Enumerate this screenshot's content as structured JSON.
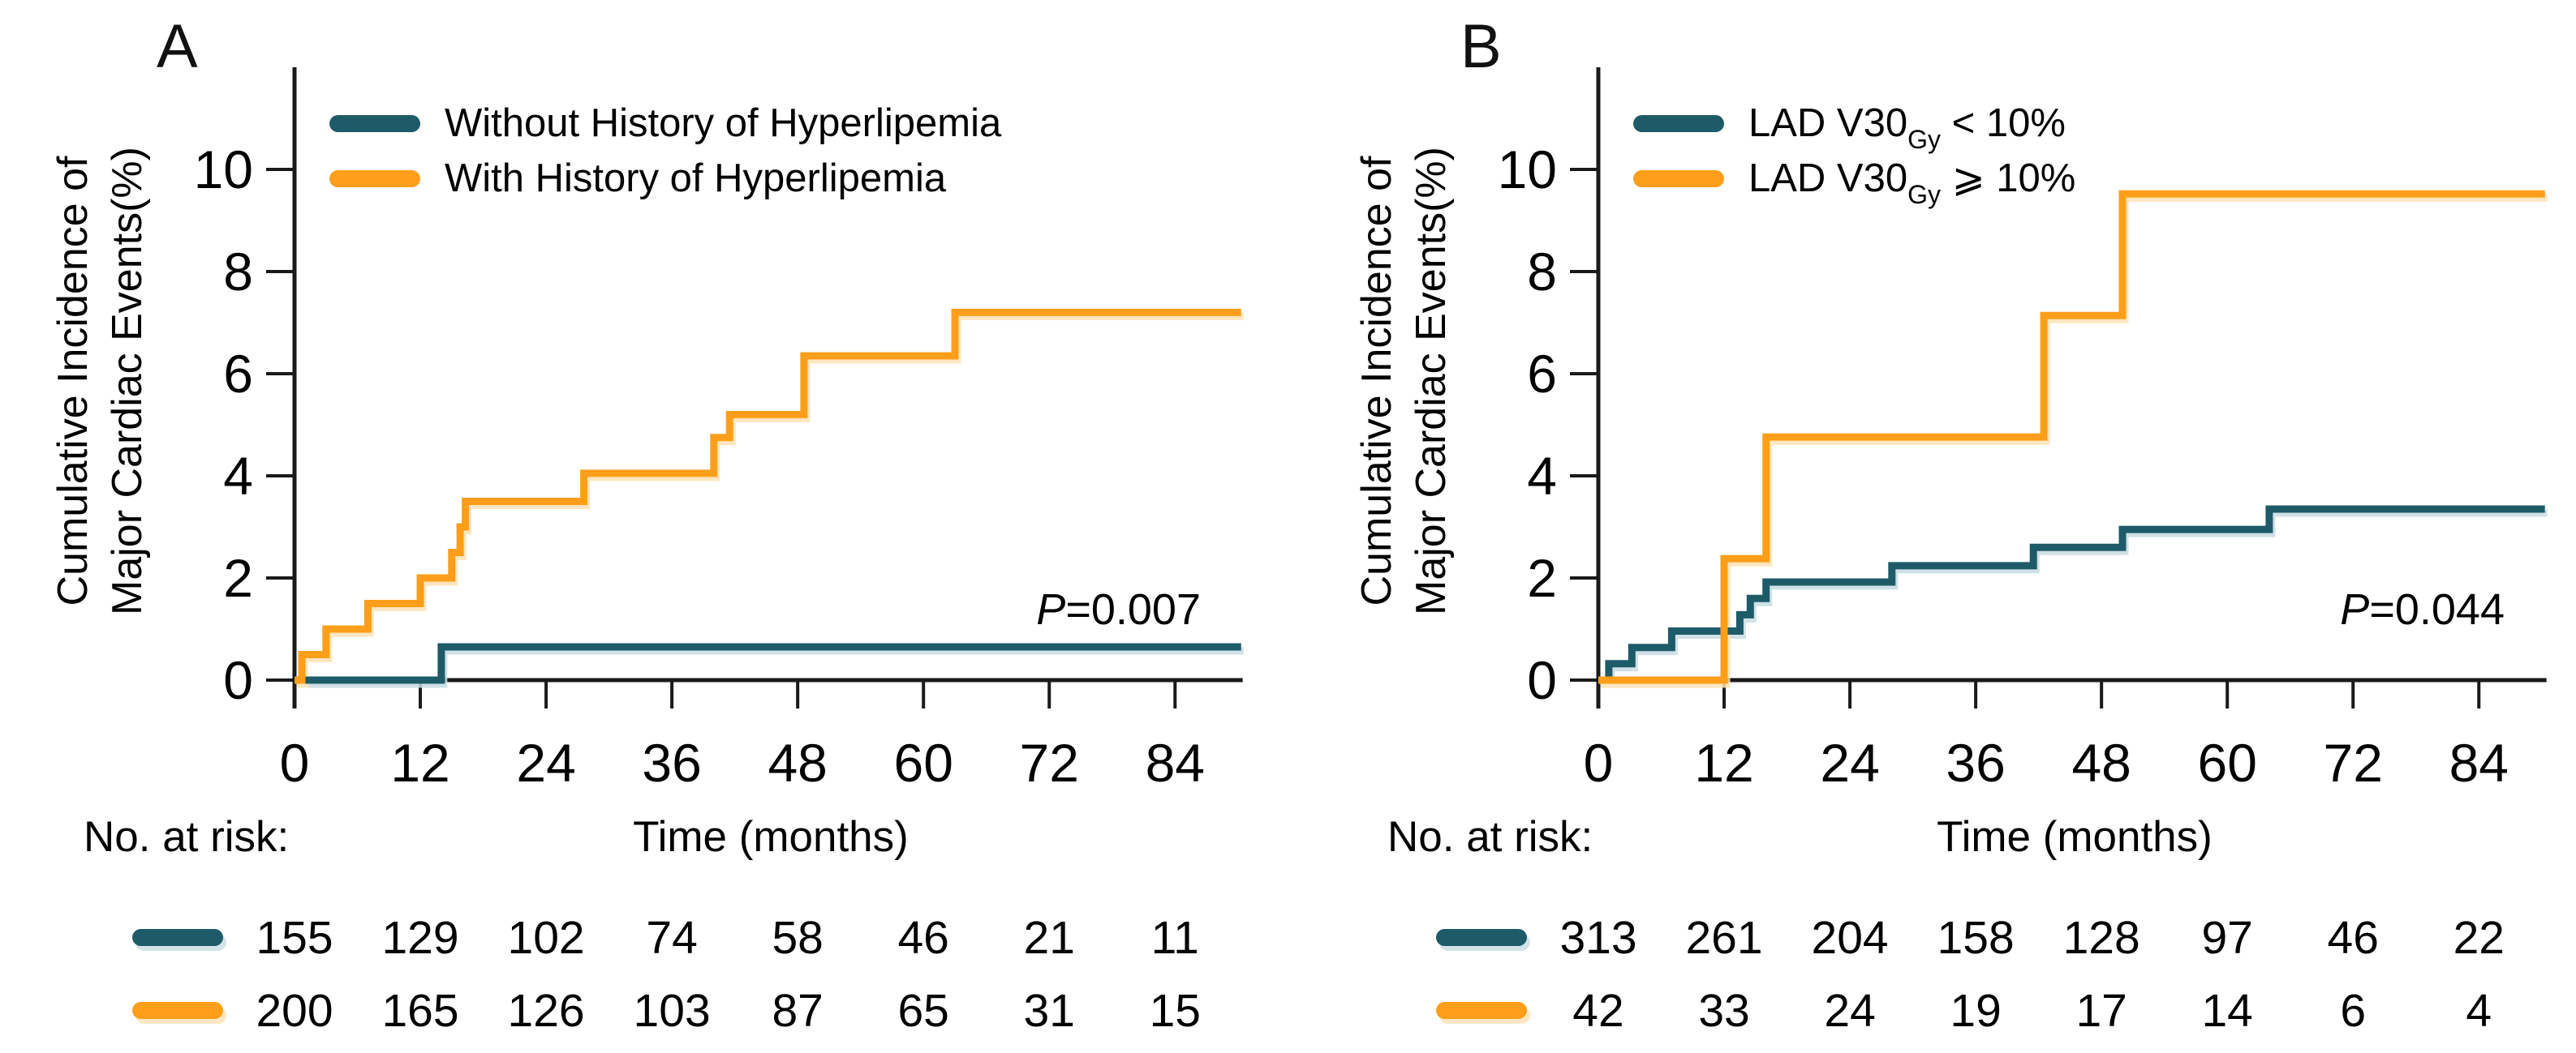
{
  "figure": {
    "background": "#ffffff",
    "axis_color": "#1a1a1a",
    "text_color": "#000000"
  },
  "colors": {
    "teal": "#1E5B69",
    "orange": "#FF9E1A",
    "teal_halo": "#C7DCE2",
    "orange_halo": "#FFE2B4"
  },
  "panels": [
    {
      "label": "A",
      "ylabel_line1": "Cumulative Incidence of",
      "ylabel_line2": "Major Cardiac Events(%)",
      "xlabel": "Time (months)",
      "risk_label": "No. at risk:",
      "p_pre": "P",
      "p_rest": "=0.007",
      "legend": [
        {
          "pre": "Without History of Hyperlipemia",
          "sub": "",
          "post": ""
        },
        {
          "pre": "With History of Hyperlipemia",
          "sub": "",
          "post": ""
        }
      ]
    },
    {
      "label": "B",
      "ylabel_line1": "Cumulative Incidence of",
      "ylabel_line2": "Major Cardiac Events(%)",
      "xlabel": "Time (months)",
      "risk_label": "No. at risk:",
      "p_pre": "P",
      "p_rest": "=0.044",
      "legend": [
        {
          "pre": "LAD V30",
          "sub": "Gy",
          "post": " < 10%"
        },
        {
          "pre": "LAD V30",
          "sub": "Gy",
          "post": " ⩾ 10%"
        }
      ]
    }
  ],
  "chart_data": [
    {
      "type": "line",
      "step": true,
      "title": "A",
      "xlabel": "Time (months)",
      "ylabel": "Cumulative Incidence of Major Cardiac Events(%)",
      "xlim": [
        0,
        90.3
      ],
      "ylim": [
        0,
        12
      ],
      "xticks": [
        0,
        12,
        24,
        36,
        48,
        60,
        72,
        84
      ],
      "yticks": [
        0,
        2,
        4,
        6,
        8,
        10
      ],
      "grid": false,
      "legend_position": "top-left-inside",
      "annotation": "P=0.007",
      "end_month": 90.3,
      "series": [
        {
          "name": "Without History of Hyperlipemia",
          "color_key": "teal",
          "steps": [
            [
              14,
              0.65
            ]
          ]
        },
        {
          "name": "With History of Hyperlipemia",
          "color_key": "orange",
          "steps": [
            [
              0.7,
              0.5
            ],
            [
              3,
              1.0
            ],
            [
              7,
              1.5
            ],
            [
              12,
              2.0
            ],
            [
              15,
              2.5
            ],
            [
              15.8,
              3.0
            ],
            [
              16.3,
              3.5
            ],
            [
              27.6,
              4.05
            ],
            [
              40,
              4.75
            ],
            [
              41.5,
              5.2
            ],
            [
              48.6,
              6.35
            ],
            [
              63,
              7.2
            ]
          ]
        }
      ],
      "number_at_risk": {
        "times": [
          0,
          12,
          24,
          36,
          48,
          60,
          72,
          84
        ],
        "rows": [
          {
            "name": "Without History of Hyperlipemia",
            "color_key": "teal",
            "values": [
              155,
              129,
              102,
              74,
              58,
              46,
              21,
              11
            ]
          },
          {
            "name": "With History of Hyperlipemia",
            "color_key": "orange",
            "values": [
              200,
              165,
              126,
              103,
              87,
              65,
              31,
              15
            ]
          }
        ]
      }
    },
    {
      "type": "line",
      "step": true,
      "title": "B",
      "xlabel": "Time (months)",
      "ylabel": "Cumulative Incidence of Major Cardiac Events(%)",
      "xlim": [
        0,
        90.3
      ],
      "ylim": [
        0,
        12
      ],
      "xticks": [
        0,
        12,
        24,
        36,
        48,
        60,
        72,
        84
      ],
      "yticks": [
        0,
        2,
        4,
        6,
        8,
        10
      ],
      "grid": false,
      "legend_position": "top-left-inside",
      "annotation": "P=0.044",
      "end_month": 90.3,
      "series": [
        {
          "name": "LAD V30Gy < 10%",
          "color_key": "teal",
          "steps": [
            [
              1,
              0.32
            ],
            [
              3.2,
              0.64
            ],
            [
              7,
              0.96
            ],
            [
              13.5,
              1.28
            ],
            [
              14.5,
              1.6
            ],
            [
              16,
              1.92
            ],
            [
              28,
              2.24
            ],
            [
              41.5,
              2.6
            ],
            [
              50,
              2.95
            ],
            [
              64,
              3.35
            ]
          ]
        },
        {
          "name": "LAD V30Gy ⩾ 10%",
          "color_key": "orange",
          "steps": [
            [
              12,
              2.38
            ],
            [
              16,
              4.76
            ],
            [
              42.5,
              7.14
            ],
            [
              50,
              9.52
            ]
          ]
        }
      ],
      "number_at_risk": {
        "times": [
          0,
          12,
          24,
          36,
          48,
          60,
          72,
          84
        ],
        "rows": [
          {
            "name": "LAD V30Gy < 10%",
            "color_key": "teal",
            "values": [
              313,
              261,
              204,
              158,
              128,
              97,
              46,
              22
            ]
          },
          {
            "name": "LAD V30Gy ⩾ 10%",
            "color_key": "orange",
            "values": [
              42,
              33,
              24,
              19,
              17,
              14,
              6,
              4
            ]
          }
        ]
      }
    }
  ]
}
